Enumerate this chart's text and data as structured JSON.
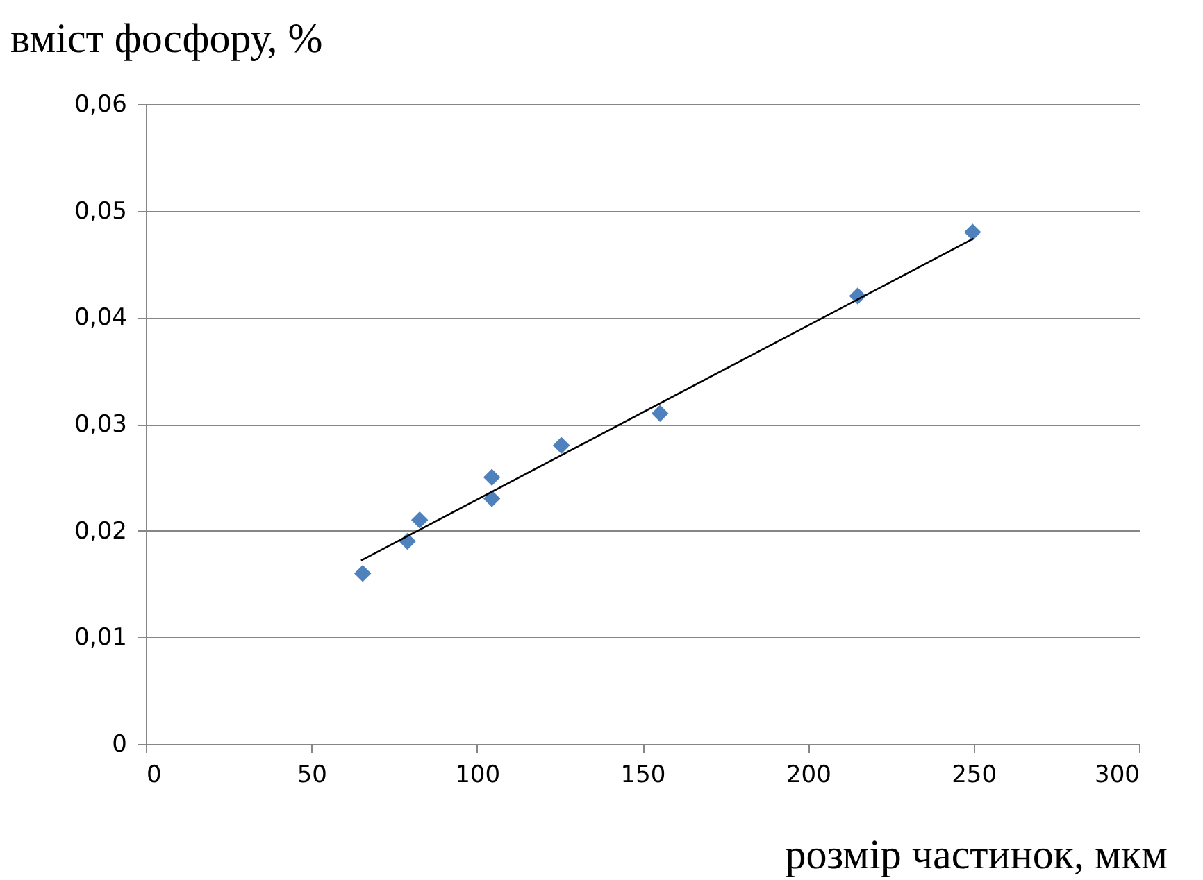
{
  "chart_data": {
    "type": "scatter",
    "xlabel": "розмір частинок, мкм",
    "ylabel": "вміст фосфору, %",
    "x": [
      65.5,
      79,
      82.7,
      104.5,
      104.5,
      125.5,
      155.3,
      215,
      249.7
    ],
    "series": [
      {
        "color": "#4f81bd",
        "values": [
          0.016,
          0.019,
          0.021,
          0.025,
          0.023,
          0.028,
          0.031,
          0.042,
          0.048
        ]
      },
      {
        "type": "line",
        "color": "#000000",
        "marker": "none",
        "x": [
          65,
          250
        ],
        "values": [
          0.0172,
          0.0474
        ]
      }
    ],
    "xlim": [
      0,
      300
    ],
    "xticks": [
      0,
      50,
      100,
      150,
      200,
      250,
      300
    ],
    "ylim": [
      0,
      0.06
    ],
    "yticks": [
      0,
      {
        "value": 0.01,
        "label": "0,01"
      },
      {
        "value": 0.02,
        "label": "0,02"
      },
      {
        "value": 0.03,
        "label": "0,03"
      },
      {
        "value": 0.04,
        "label": "0,04"
      },
      {
        "value": 0.05,
        "label": "0,05"
      },
      {
        "value": 0.06,
        "label": "0,06"
      }
    ],
    "grid": "y",
    "marker": "diamond"
  }
}
